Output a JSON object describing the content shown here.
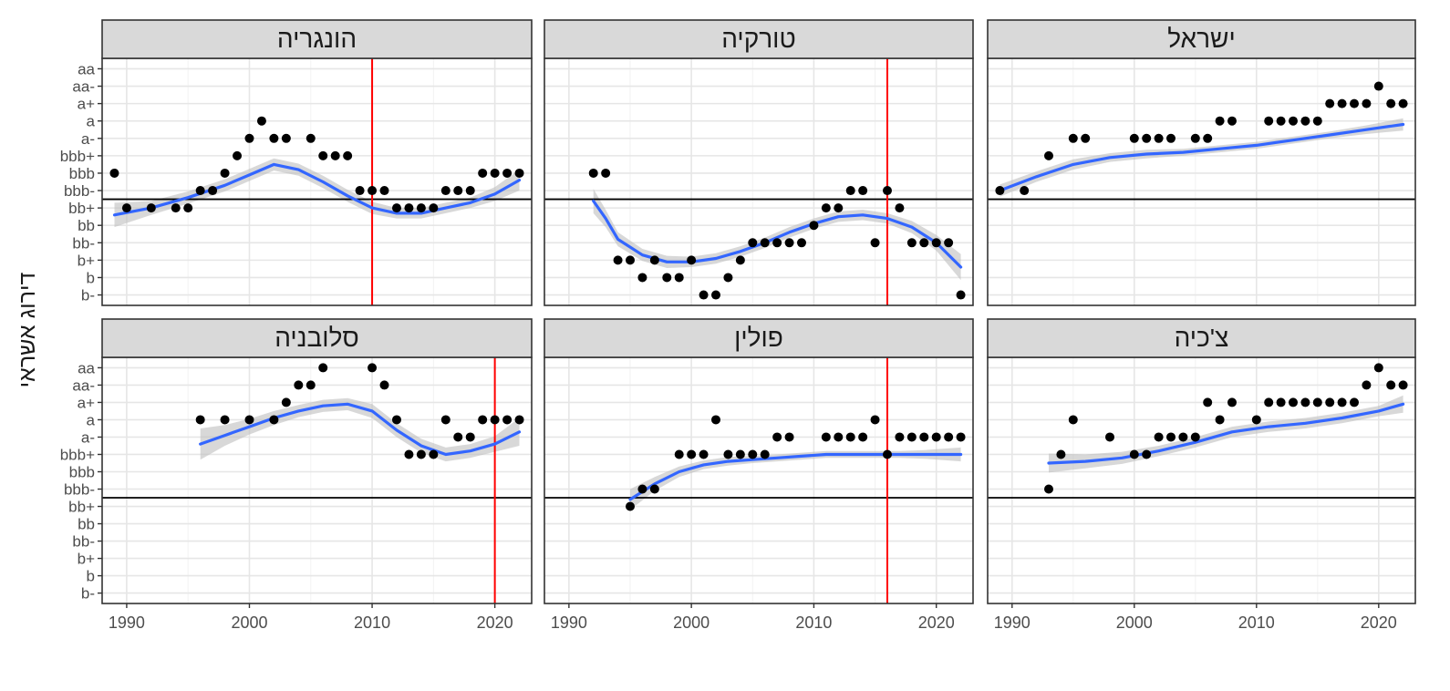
{
  "chart_data": {
    "type": "scatter",
    "ylabel": "דירוג אשראי",
    "xlabel": "",
    "x_ticks": [
      1990,
      2000,
      2010,
      2020
    ],
    "xlim": [
      1988,
      2023
    ],
    "y_levels": [
      "b-",
      "b",
      "b+",
      "bb-",
      "bb",
      "bb+",
      "bbb-",
      "bbb",
      "bbb+",
      "a-",
      "a",
      "a+",
      "aa-",
      "aa"
    ],
    "investment_grade_threshold": "bbb-",
    "grid": true,
    "colors": {
      "points": "#000000",
      "smooth_line": "#3366FF",
      "confidence_band": "#BEBEBE",
      "event_line": "#FF0000",
      "threshold_line": "#000000",
      "strip_background": "#D9D9D9"
    },
    "panels": [
      {
        "title": "הונגריה",
        "event_year": 2010,
        "points": [
          [
            1989,
            "bbb"
          ],
          [
            1990,
            "bb+"
          ],
          [
            1992,
            "bb+"
          ],
          [
            1994,
            "bb+"
          ],
          [
            1995,
            "bb+"
          ],
          [
            1996,
            "bbb-"
          ],
          [
            1997,
            "bbb-"
          ],
          [
            1998,
            "bbb"
          ],
          [
            1999,
            "bbb+"
          ],
          [
            2000,
            "a-"
          ],
          [
            2001,
            "a"
          ],
          [
            2002,
            "a-"
          ],
          [
            2003,
            "a-"
          ],
          [
            2005,
            "a-"
          ],
          [
            2006,
            "bbb+"
          ],
          [
            2007,
            "bbb+"
          ],
          [
            2008,
            "bbb+"
          ],
          [
            2009,
            "bbb-"
          ],
          [
            2010,
            "bbb-"
          ],
          [
            2011,
            "bbb-"
          ],
          [
            2012,
            "bb+"
          ],
          [
            2013,
            "bb+"
          ],
          [
            2014,
            "bb+"
          ],
          [
            2015,
            "bb+"
          ],
          [
            2016,
            "bbb-"
          ],
          [
            2017,
            "bbb-"
          ],
          [
            2018,
            "bbb-"
          ],
          [
            2019,
            "bbb"
          ],
          [
            2020,
            "bbb"
          ],
          [
            2021,
            "bbb"
          ],
          [
            2022,
            "bbb"
          ]
        ],
        "trend": [
          [
            1989,
            5.6
          ],
          [
            1992,
            6.0
          ],
          [
            1995,
            6.6
          ],
          [
            1998,
            7.3
          ],
          [
            2000,
            7.9
          ],
          [
            2002,
            8.5
          ],
          [
            2004,
            8.2
          ],
          [
            2006,
            7.5
          ],
          [
            2008,
            6.7
          ],
          [
            2010,
            6.0
          ],
          [
            2012,
            5.7
          ],
          [
            2014,
            5.7
          ],
          [
            2016,
            6.0
          ],
          [
            2018,
            6.3
          ],
          [
            2020,
            6.8
          ],
          [
            2022,
            7.6
          ]
        ],
        "band_halfwidth": [
          0.7,
          0.4,
          0.35,
          0.35,
          0.35,
          0.35,
          0.35,
          0.35,
          0.35,
          0.35,
          0.3,
          0.3,
          0.3,
          0.3,
          0.4,
          0.6
        ]
      },
      {
        "title": "טורקיה",
        "event_year": 2016,
        "points": [
          [
            1992,
            "bbb"
          ],
          [
            1993,
            "bbb"
          ],
          [
            1994,
            "b+"
          ],
          [
            1995,
            "b+"
          ],
          [
            1996,
            "b"
          ],
          [
            1997,
            "b+"
          ],
          [
            1998,
            "b"
          ],
          [
            1999,
            "b"
          ],
          [
            2000,
            "b+"
          ],
          [
            2001,
            "b-"
          ],
          [
            2002,
            "b-"
          ],
          [
            2003,
            "b"
          ],
          [
            2004,
            "b+"
          ],
          [
            2005,
            "bb-"
          ],
          [
            2006,
            "bb-"
          ],
          [
            2007,
            "bb-"
          ],
          [
            2008,
            "bb-"
          ],
          [
            2009,
            "bb-"
          ],
          [
            2010,
            "bb"
          ],
          [
            2011,
            "bb+"
          ],
          [
            2012,
            "bb+"
          ],
          [
            2013,
            "bbb-"
          ],
          [
            2014,
            "bbb-"
          ],
          [
            2015,
            "bb-"
          ],
          [
            2016,
            "bbb-"
          ],
          [
            2017,
            "bb+"
          ],
          [
            2018,
            "bb-"
          ],
          [
            2019,
            "bb-"
          ],
          [
            2020,
            "bb-"
          ],
          [
            2021,
            "bb-"
          ],
          [
            2022,
            "b-"
          ]
        ],
        "trend": [
          [
            1992,
            6.4
          ],
          [
            1993,
            5.4
          ],
          [
            1994,
            4.2
          ],
          [
            1996,
            3.3
          ],
          [
            1998,
            2.9
          ],
          [
            2000,
            2.9
          ],
          [
            2002,
            3.1
          ],
          [
            2004,
            3.5
          ],
          [
            2006,
            4.0
          ],
          [
            2008,
            4.6
          ],
          [
            2010,
            5.1
          ],
          [
            2012,
            5.5
          ],
          [
            2014,
            5.6
          ],
          [
            2016,
            5.4
          ],
          [
            2018,
            4.9
          ],
          [
            2020,
            4.0
          ],
          [
            2022,
            2.6
          ]
        ],
        "band_halfwidth": [
          0.7,
          0.5,
          0.4,
          0.35,
          0.35,
          0.3,
          0.3,
          0.3,
          0.3,
          0.3,
          0.3,
          0.3,
          0.3,
          0.3,
          0.35,
          0.45,
          0.75
        ]
      },
      {
        "title": "ישראל",
        "event_year": null,
        "points": [
          [
            1989,
            "bbb-"
          ],
          [
            1991,
            "bbb-"
          ],
          [
            1993,
            "bbb+"
          ],
          [
            1995,
            "a-"
          ],
          [
            1996,
            "a-"
          ],
          [
            2000,
            "a-"
          ],
          [
            2001,
            "a-"
          ],
          [
            2002,
            "a-"
          ],
          [
            2003,
            "a-"
          ],
          [
            2005,
            "a-"
          ],
          [
            2006,
            "a-"
          ],
          [
            2007,
            "a"
          ],
          [
            2008,
            "a"
          ],
          [
            2011,
            "a"
          ],
          [
            2012,
            "a"
          ],
          [
            2013,
            "a"
          ],
          [
            2014,
            "a"
          ],
          [
            2015,
            "a"
          ],
          [
            2016,
            "a+"
          ],
          [
            2017,
            "a+"
          ],
          [
            2018,
            "a+"
          ],
          [
            2019,
            "a+"
          ],
          [
            2020,
            "aa-"
          ],
          [
            2021,
            "a+"
          ],
          [
            2022,
            "a+"
          ]
        ],
        "trend": [
          [
            1989,
            7.0
          ],
          [
            1992,
            7.8
          ],
          [
            1995,
            8.5
          ],
          [
            1998,
            8.9
          ],
          [
            2001,
            9.1
          ],
          [
            2004,
            9.2
          ],
          [
            2007,
            9.4
          ],
          [
            2010,
            9.6
          ],
          [
            2013,
            9.9
          ],
          [
            2016,
            10.2
          ],
          [
            2019,
            10.5
          ],
          [
            2022,
            10.8
          ]
        ],
        "band_halfwidth": [
          0.35,
          0.3,
          0.3,
          0.25,
          0.25,
          0.2,
          0.2,
          0.2,
          0.2,
          0.2,
          0.25,
          0.35
        ]
      },
      {
        "title": "סלובניה",
        "event_year": 2020,
        "points": [
          [
            1996,
            "a"
          ],
          [
            1998,
            "a"
          ],
          [
            2000,
            "a"
          ],
          [
            2002,
            "a"
          ],
          [
            2003,
            "a+"
          ],
          [
            2004,
            "aa-"
          ],
          [
            2005,
            "aa-"
          ],
          [
            2006,
            "aa"
          ],
          [
            2010,
            "aa"
          ],
          [
            2011,
            "aa-"
          ],
          [
            2012,
            "a"
          ],
          [
            2013,
            "bbb+"
          ],
          [
            2014,
            "bbb+"
          ],
          [
            2015,
            "bbb+"
          ],
          [
            2016,
            "a"
          ],
          [
            2017,
            "a-"
          ],
          [
            2018,
            "a-"
          ],
          [
            2019,
            "a"
          ],
          [
            2020,
            "a"
          ],
          [
            2021,
            "a"
          ],
          [
            2022,
            "a"
          ]
        ],
        "trend": [
          [
            1996,
            9.6
          ],
          [
            1998,
            10.1
          ],
          [
            2000,
            10.6
          ],
          [
            2002,
            11.1
          ],
          [
            2004,
            11.5
          ],
          [
            2006,
            11.8
          ],
          [
            2008,
            11.9
          ],
          [
            2010,
            11.5
          ],
          [
            2012,
            10.4
          ],
          [
            2014,
            9.5
          ],
          [
            2016,
            9.0
          ],
          [
            2018,
            9.2
          ],
          [
            2020,
            9.6
          ],
          [
            2022,
            10.3
          ]
        ],
        "band_halfwidth": [
          0.9,
          0.6,
          0.45,
          0.4,
          0.35,
          0.35,
          0.35,
          0.4,
          0.4,
          0.4,
          0.4,
          0.4,
          0.45,
          0.8
        ]
      },
      {
        "title": "פולין",
        "event_year": 2016,
        "points": [
          [
            1995,
            "bb+"
          ],
          [
            1996,
            "bbb-"
          ],
          [
            1997,
            "bbb-"
          ],
          [
            1999,
            "bbb+"
          ],
          [
            2000,
            "bbb+"
          ],
          [
            2001,
            "bbb+"
          ],
          [
            2002,
            "a"
          ],
          [
            2003,
            "bbb+"
          ],
          [
            2004,
            "bbb+"
          ],
          [
            2005,
            "bbb+"
          ],
          [
            2006,
            "bbb+"
          ],
          [
            2007,
            "a-"
          ],
          [
            2008,
            "a-"
          ],
          [
            2011,
            "a-"
          ],
          [
            2012,
            "a-"
          ],
          [
            2013,
            "a-"
          ],
          [
            2014,
            "a-"
          ],
          [
            2015,
            "a"
          ],
          [
            2016,
            "bbb+"
          ],
          [
            2017,
            "a-"
          ],
          [
            2018,
            "a-"
          ],
          [
            2019,
            "a-"
          ],
          [
            2020,
            "a-"
          ],
          [
            2021,
            "a-"
          ],
          [
            2022,
            "a-"
          ]
        ],
        "trend": [
          [
            1995,
            6.4
          ],
          [
            1997,
            7.3
          ],
          [
            1999,
            8.0
          ],
          [
            2001,
            8.4
          ],
          [
            2003,
            8.6
          ],
          [
            2005,
            8.7
          ],
          [
            2007,
            8.8
          ],
          [
            2009,
            8.9
          ],
          [
            2011,
            9.0
          ],
          [
            2013,
            9.0
          ],
          [
            2015,
            9.0
          ],
          [
            2017,
            9.0
          ],
          [
            2019,
            9.0
          ],
          [
            2022,
            9.0
          ]
        ],
        "band_halfwidth": [
          0.6,
          0.4,
          0.3,
          0.25,
          0.25,
          0.2,
          0.2,
          0.2,
          0.2,
          0.2,
          0.2,
          0.2,
          0.25,
          0.4
        ]
      },
      {
        "title": "צ'כיה",
        "event_year": null,
        "points": [
          [
            1993,
            "bbb-"
          ],
          [
            1994,
            "bbb+"
          ],
          [
            1995,
            "a"
          ],
          [
            1998,
            "a-"
          ],
          [
            2000,
            "bbb+"
          ],
          [
            2001,
            "bbb+"
          ],
          [
            2002,
            "a-"
          ],
          [
            2003,
            "a-"
          ],
          [
            2004,
            "a-"
          ],
          [
            2005,
            "a-"
          ],
          [
            2006,
            "a+"
          ],
          [
            2007,
            "a"
          ],
          [
            2008,
            "a+"
          ],
          [
            2010,
            "a"
          ],
          [
            2011,
            "a+"
          ],
          [
            2012,
            "a+"
          ],
          [
            2013,
            "a+"
          ],
          [
            2014,
            "a+"
          ],
          [
            2015,
            "a+"
          ],
          [
            2016,
            "a+"
          ],
          [
            2017,
            "a+"
          ],
          [
            2018,
            "a+"
          ],
          [
            2019,
            "aa-"
          ],
          [
            2020,
            "aa"
          ],
          [
            2021,
            "aa-"
          ],
          [
            2022,
            "aa-"
          ]
        ],
        "trend": [
          [
            1993,
            8.5
          ],
          [
            1996,
            8.6
          ],
          [
            1999,
            8.8
          ],
          [
            2002,
            9.2
          ],
          [
            2005,
            9.7
          ],
          [
            2008,
            10.3
          ],
          [
            2011,
            10.6
          ],
          [
            2014,
            10.8
          ],
          [
            2017,
            11.1
          ],
          [
            2020,
            11.5
          ],
          [
            2022,
            11.9
          ]
        ],
        "band_halfwidth": [
          0.55,
          0.4,
          0.35,
          0.3,
          0.3,
          0.3,
          0.3,
          0.3,
          0.3,
          0.3,
          0.5
        ]
      }
    ]
  }
}
